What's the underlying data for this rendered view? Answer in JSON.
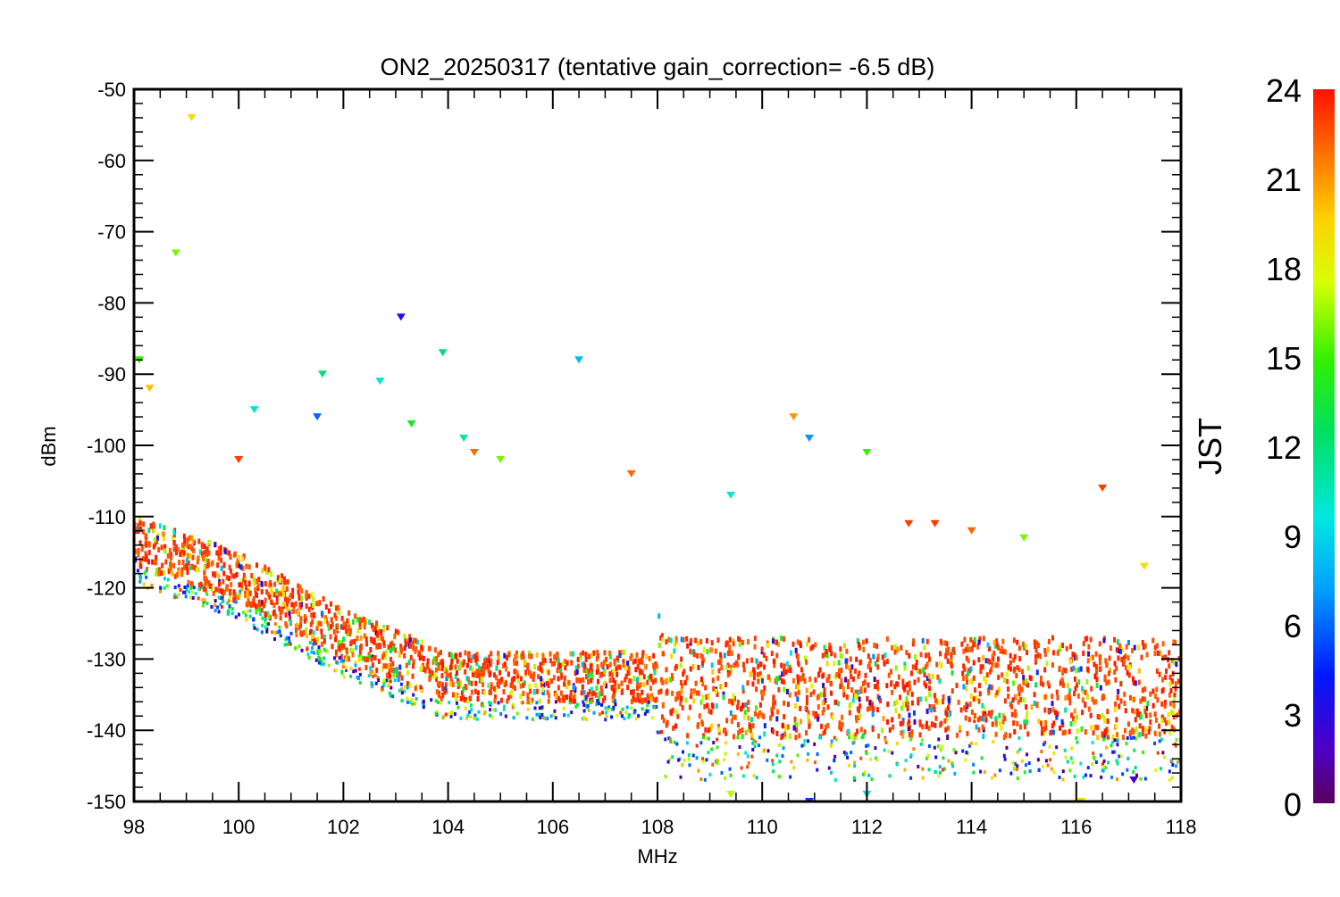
{
  "chart_data": {
    "type": "scatter",
    "title": "ON2_20250317 (tentative gain_correction= -6.5 dB)",
    "xlabel": "MHz",
    "ylabel": "dBm",
    "xlim": [
      98,
      118
    ],
    "ylim": [
      -150,
      -50
    ],
    "x_ticks": [
      98,
      100,
      102,
      104,
      106,
      108,
      110,
      112,
      114,
      116,
      118
    ],
    "y_ticks": [
      -50,
      -60,
      -70,
      -80,
      -90,
      -100,
      -110,
      -120,
      -130,
      -140,
      -150
    ],
    "grid": false,
    "colorbar": {
      "label": "JST",
      "range": [
        0,
        24
      ],
      "ticks": [
        24,
        21,
        18,
        15,
        12,
        9,
        6,
        3,
        0
      ],
      "colormap": "rainbow"
    },
    "noise_floor": [
      {
        "x": 98,
        "y": -117
      },
      {
        "x": 100,
        "y": -122
      },
      {
        "x": 102,
        "y": -130
      },
      {
        "x": 104,
        "y": -136
      },
      {
        "x": 106,
        "y": -136
      },
      {
        "x": 108,
        "y": -136
      },
      {
        "x": 108.1,
        "y": -141
      },
      {
        "x": 112,
        "y": -141
      },
      {
        "x": 118,
        "y": -141
      }
    ],
    "peaks": [
      {
        "x": 98.1,
        "y": -88,
        "jst": 15
      },
      {
        "x": 98.3,
        "y": -92,
        "jst": 20
      },
      {
        "x": 98.8,
        "y": -73,
        "jst": 16
      },
      {
        "x": 99.1,
        "y": -54,
        "jst": 19
      },
      {
        "x": 100.0,
        "y": -102,
        "jst": 23
      },
      {
        "x": 100.3,
        "y": -95,
        "jst": 10
      },
      {
        "x": 101.5,
        "y": -96,
        "jst": 6
      },
      {
        "x": 101.6,
        "y": -90,
        "jst": 12
      },
      {
        "x": 102.7,
        "y": -91,
        "jst": 10
      },
      {
        "x": 103.1,
        "y": -82,
        "jst": 3
      },
      {
        "x": 103.3,
        "y": -97,
        "jst": 14
      },
      {
        "x": 103.9,
        "y": -87,
        "jst": 12
      },
      {
        "x": 104.3,
        "y": -99,
        "jst": 11
      },
      {
        "x": 104.5,
        "y": -101,
        "jst": 22
      },
      {
        "x": 105.0,
        "y": -102,
        "jst": 16
      },
      {
        "x": 106.5,
        "y": -88,
        "jst": 8
      },
      {
        "x": 107.5,
        "y": -104,
        "jst": 22
      },
      {
        "x": 109.4,
        "y": -107,
        "jst": 10
      },
      {
        "x": 110.6,
        "y": -96,
        "jst": 21
      },
      {
        "x": 110.9,
        "y": -99,
        "jst": 7
      },
      {
        "x": 112.0,
        "y": -101,
        "jst": 15
      },
      {
        "x": 112.8,
        "y": -111,
        "jst": 23
      },
      {
        "x": 113.3,
        "y": -111,
        "jst": 23
      },
      {
        "x": 114.0,
        "y": -112,
        "jst": 22
      },
      {
        "x": 115.0,
        "y": -113,
        "jst": 16
      },
      {
        "x": 116.5,
        "y": -106,
        "jst": 23
      },
      {
        "x": 117.3,
        "y": -117,
        "jst": 19
      }
    ],
    "minima": [
      {
        "x": 109.4,
        "y": -149,
        "jst": 17
      },
      {
        "x": 110.9,
        "y": -150,
        "jst": 5
      },
      {
        "x": 112.0,
        "y": -149,
        "jst": 10
      },
      {
        "x": 116.1,
        "y": -150,
        "jst": 19
      },
      {
        "x": 117.1,
        "y": -147,
        "jst": 2
      }
    ]
  }
}
